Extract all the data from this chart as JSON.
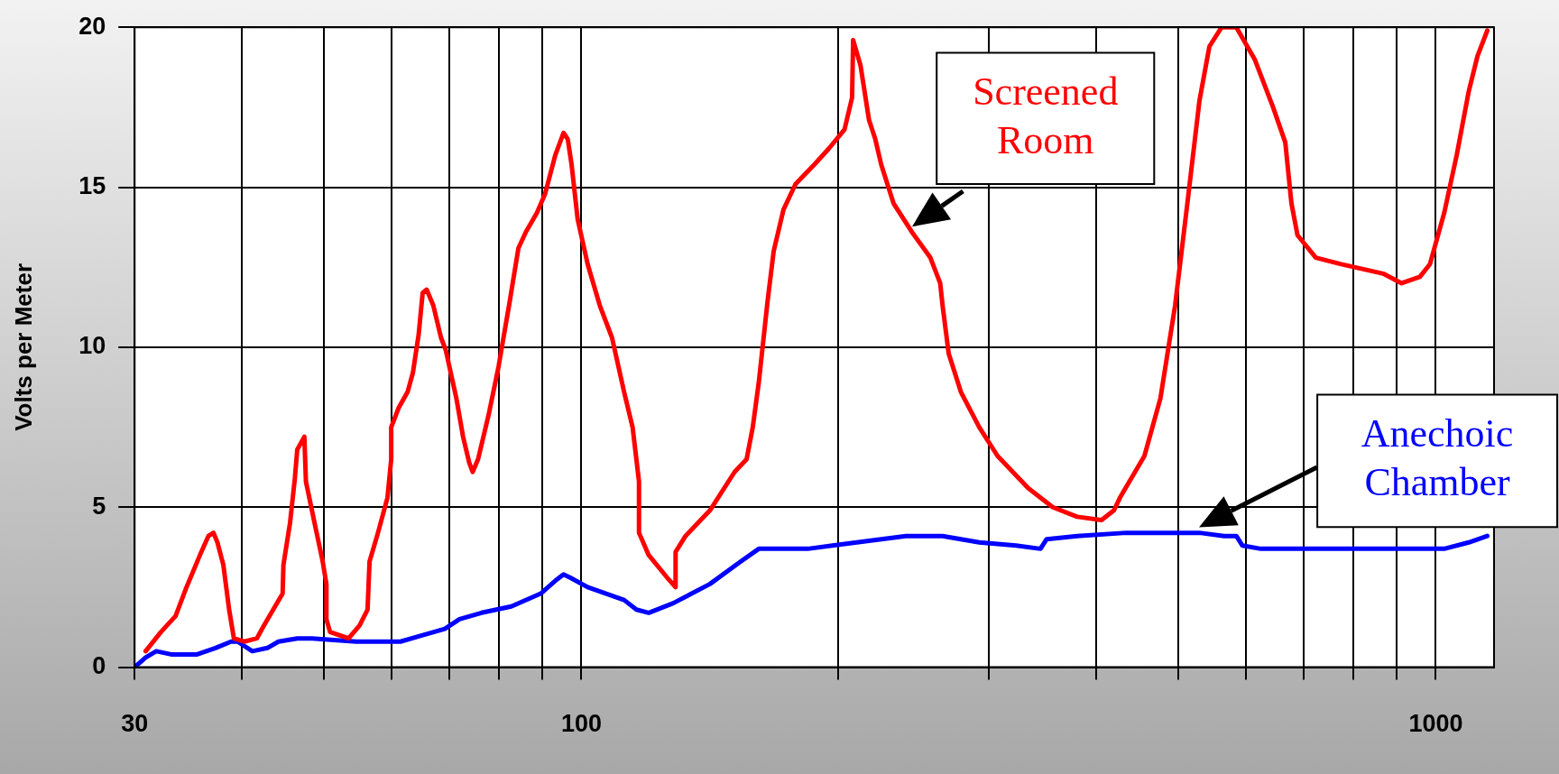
{
  "chart_data": {
    "type": "line",
    "ylabel": "Volts per Meter",
    "log": "x",
    "grid": true,
    "legend": false,
    "marker": "none",
    "line_style": "solid",
    "xlim": [
      30,
      1170
    ],
    "ylim": [
      0,
      20
    ],
    "xticks": [
      30,
      {
        "value": 40,
        "label": null
      },
      {
        "value": 50,
        "label": null
      },
      {
        "value": 60,
        "label": null
      },
      {
        "value": 70,
        "label": null
      },
      {
        "value": 80,
        "label": null
      },
      {
        "value": 90,
        "label": null
      },
      100,
      {
        "value": 200,
        "label": null
      },
      {
        "value": 300,
        "label": null
      },
      {
        "value": 400,
        "label": null
      },
      {
        "value": 500,
        "label": null
      },
      {
        "value": 600,
        "label": null
      },
      {
        "value": 700,
        "label": null
      },
      {
        "value": 800,
        "label": null
      },
      {
        "value": 900,
        "label": null
      },
      1000
    ],
    "yticks": [
      0,
      5,
      10,
      15,
      20
    ],
    "series": [
      {
        "name": "Screened Room",
        "color": "#ff0000",
        "x": [
          30.9,
          32.2,
          33.5,
          34.5,
          35.9,
          36.6,
          37.1,
          37.5,
          38.1,
          38.7,
          39.2,
          40.3,
          41.7,
          42.5,
          43.8,
          44.7,
          44.8,
          45.6,
          46.2,
          46.5,
          47.4,
          47.6,
          48.9,
          49.8,
          50.3,
          50.3,
          50.8,
          53.4,
          55.0,
          56.2,
          56.5,
          57.8,
          59.3,
          59.9,
          59.9,
          61.1,
          62.6,
          63.5,
          64.5,
          65.2,
          65.9,
          67.1,
          68.5,
          69.4,
          71.4,
          72.7,
          73.9,
          74.6,
          75.7,
          77.9,
          80.0,
          82.4,
          84.4,
          86.1,
          88.7,
          90.7,
          93.2,
          95.3,
          96.4,
          97.4,
          99.0,
          101.7,
          105.1,
          108.6,
          112.2,
          114.8,
          116.8,
          116.8,
          119.9,
          126.0,
          128.9,
          128.9,
          132.4,
          141.4,
          151.1,
          156.1,
          158.7,
          161.3,
          165.1,
          167.9,
          172.4,
          178.1,
          187.2,
          194.7,
          203.2,
          207.4,
          208.0,
          212.2,
          217.1,
          220.8,
          224.4,
          231.9,
          243.7,
          256.1,
          263.0,
          264.7,
          269.1,
          278.1,
          292.2,
          307.0,
          333.3,
          356.2,
          380.4,
          406.3,
          420.0,
          427.0,
          456.0,
          476.1,
          495.3,
          512.0,
          528.9,
          543.3,
          561.5,
          584.2,
          613.8,
          645.0,
          666.6,
          677.7,
          688.9,
          723.7,
          773.2,
          867.7,
          912.0,
          958.1,
          984.5,
          1023,
          1058,
          1093,
          1119,
          1149
        ],
        "values": [
          0.5,
          1.1,
          1.6,
          2.5,
          3.6,
          4.1,
          4.2,
          3.9,
          3.2,
          1.8,
          0.9,
          0.8,
          0.9,
          1.3,
          1.9,
          2.3,
          3.2,
          4.5,
          5.9,
          6.8,
          7.2,
          5.8,
          4.3,
          3.3,
          2.6,
          1.5,
          1.1,
          0.9,
          1.3,
          1.8,
          3.3,
          4.2,
          5.3,
          6.5,
          7.5,
          8.1,
          8.6,
          9.2,
          10.4,
          11.7,
          11.8,
          11.3,
          10.3,
          9.9,
          8.4,
          7.2,
          6.4,
          6.1,
          6.5,
          7.9,
          9.4,
          11.4,
          13.1,
          13.6,
          14.2,
          14.8,
          16.0,
          16.7,
          16.5,
          15.7,
          14.0,
          12.6,
          11.3,
          10.3,
          8.6,
          7.5,
          5.8,
          4.2,
          3.5,
          2.8,
          2.5,
          3.6,
          4.1,
          4.9,
          6.1,
          6.5,
          7.5,
          8.9,
          11.4,
          13.0,
          14.3,
          15.1,
          15.7,
          16.2,
          16.8,
          17.8,
          19.6,
          18.8,
          17.1,
          16.5,
          15.7,
          14.5,
          13.6,
          12.8,
          12.0,
          11.3,
          9.8,
          8.6,
          7.5,
          6.6,
          5.6,
          5.0,
          4.7,
          4.6,
          4.9,
          5.3,
          6.6,
          8.4,
          11.3,
          14.5,
          17.7,
          19.4,
          20.0,
          20.0,
          19.0,
          17.5,
          16.4,
          14.5,
          13.5,
          12.8,
          12.6,
          12.3,
          12.0,
          12.2,
          12.6,
          14.2,
          16.0,
          18.0,
          19.1,
          19.9
        ]
      },
      {
        "name": "Anechoic Chamber",
        "color": "#0000ff",
        "x": [
          30,
          30.9,
          31.8,
          33.1,
          34.5,
          35.5,
          37.3,
          38.9,
          39.6,
          41.2,
          42.9,
          44.2,
          46.5,
          48.4,
          54.5,
          61.4,
          65.2,
          69.2,
          72.0,
          76.4,
          82.8,
          89.6,
          93.2,
          95.3,
          97.0,
          101.7,
          112.2,
          116.0,
          119.9,
          128.1,
          141.4,
          153.6,
          161.3,
          172.4,
          184.1,
          196.7,
          224.4,
          239.8,
          264.7,
          292.2,
          322.6,
          344.6,
          350.4,
          380.4,
          434.1,
          528.9,
          565.2,
          584.2,
          593.9,
          624.0,
          712.0,
          839.6,
          926.9,
          1023,
          1093,
          1149
        ],
        "values": [
          0.0,
          0.3,
          0.5,
          0.4,
          0.4,
          0.4,
          0.6,
          0.8,
          0.8,
          0.5,
          0.6,
          0.8,
          0.9,
          0.9,
          0.8,
          0.8,
          1.0,
          1.2,
          1.5,
          1.7,
          1.9,
          2.3,
          2.7,
          2.9,
          2.8,
          2.5,
          2.1,
          1.8,
          1.7,
          2.0,
          2.6,
          3.3,
          3.7,
          3.7,
          3.7,
          3.8,
          4.0,
          4.1,
          4.1,
          3.9,
          3.8,
          3.7,
          4.0,
          4.1,
          4.2,
          4.2,
          4.1,
          4.1,
          3.8,
          3.7,
          3.7,
          3.7,
          3.7,
          3.7,
          3.9,
          4.1
        ]
      }
    ]
  }
}
